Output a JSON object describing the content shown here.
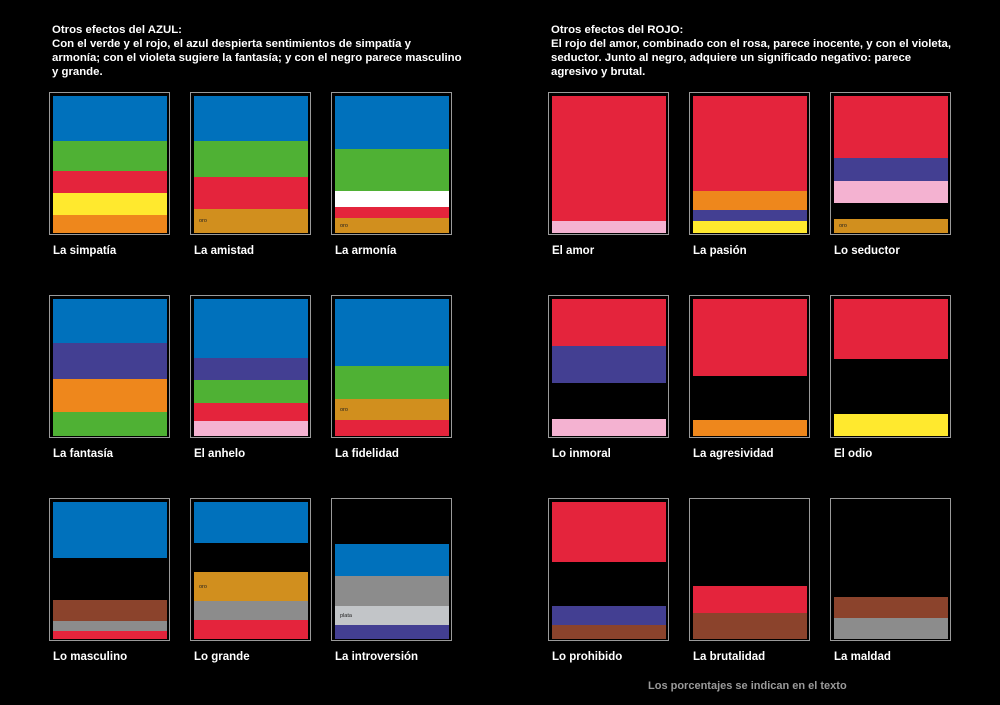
{
  "colors": {
    "azul": "#0071bc",
    "verde": "#4fb134",
    "rojo": "#e4243c",
    "amarillo": "#ffe92e",
    "naranja": "#ee871c",
    "oro": "#d18f1e",
    "blanco": "#ffffff",
    "violeta": "#433f92",
    "rosa": "#f4b2d1",
    "marron": "#8b432c",
    "gris": "#8c8c8c",
    "plata": "#c2c5c8",
    "negro": "#000000"
  },
  "azul": {
    "title": "Otros efectos del AZUL:",
    "body": "Con el verde y el rojo, el azul despierta sentimientos de simpatía y armonía; con el violeta sugiere la fantasía; y con el negro parece masculino y grande.",
    "cards": [
      {
        "label": "La simpatía",
        "stripes": [
          {
            "color": "azul",
            "share": 0.33
          },
          {
            "color": "verde",
            "share": 0.22
          },
          {
            "color": "rojo",
            "share": 0.16
          },
          {
            "color": "amarillo",
            "share": 0.16
          },
          {
            "color": "naranja",
            "share": 0.13
          }
        ]
      },
      {
        "label": "La amistad",
        "stripes": [
          {
            "color": "azul",
            "share": 0.33
          },
          {
            "color": "verde",
            "share": 0.26
          },
          {
            "color": "rojo",
            "share": 0.23
          },
          {
            "color": "oro",
            "share": 0.18,
            "tag": "oro"
          }
        ]
      },
      {
        "label": "La armonía",
        "stripes": [
          {
            "color": "azul",
            "share": 0.39
          },
          {
            "color": "verde",
            "share": 0.31
          },
          {
            "color": "blanco",
            "share": 0.12
          },
          {
            "color": "rojo",
            "share": 0.08
          },
          {
            "color": "oro",
            "share": 0.1,
            "tag": "oro"
          }
        ]
      },
      {
        "label": "La fantasía",
        "stripes": [
          {
            "color": "azul",
            "share": 0.32
          },
          {
            "color": "violeta",
            "share": 0.26
          },
          {
            "color": "naranja",
            "share": 0.24
          },
          {
            "color": "verde",
            "share": 0.18
          }
        ]
      },
      {
        "label": "El anhelo",
        "stripes": [
          {
            "color": "azul",
            "share": 0.43
          },
          {
            "color": "violeta",
            "share": 0.16
          },
          {
            "color": "verde",
            "share": 0.17
          },
          {
            "color": "rojo",
            "share": 0.13
          },
          {
            "color": "rosa",
            "share": 0.11
          }
        ]
      },
      {
        "label": "La fidelidad",
        "stripes": [
          {
            "color": "azul",
            "share": 0.49
          },
          {
            "color": "verde",
            "share": 0.24
          },
          {
            "color": "oro",
            "share": 0.15,
            "tag": "oro"
          },
          {
            "color": "rojo",
            "share": 0.12
          }
        ]
      },
      {
        "label": "Lo masculino",
        "stripes": [
          {
            "color": "azul",
            "share": 0.41
          },
          {
            "color": "negro",
            "share": 0.31
          },
          {
            "color": "marron",
            "share": 0.15
          },
          {
            "color": "gris",
            "share": 0.07
          },
          {
            "color": "rojo",
            "share": 0.06
          }
        ]
      },
      {
        "label": "Lo grande",
        "stripes": [
          {
            "color": "azul",
            "share": 0.3
          },
          {
            "color": "negro",
            "share": 0.21
          },
          {
            "color": "oro",
            "share": 0.21,
            "tag": "oro"
          },
          {
            "color": "gris",
            "share": 0.14
          },
          {
            "color": "rojo",
            "share": 0.14
          }
        ]
      },
      {
        "label": "La introversión",
        "stripes": [
          {
            "color": "negro",
            "share": 0.31
          },
          {
            "color": "azul",
            "share": 0.23
          },
          {
            "color": "gris",
            "share": 0.22
          },
          {
            "color": "plata",
            "share": 0.14,
            "tag": "plata"
          },
          {
            "color": "violeta",
            "share": 0.1
          }
        ]
      }
    ]
  },
  "rojo": {
    "title": "Otros efectos del ROJO:",
    "body": "El rojo del amor, combinado con el rosa, parece inocente, y con el violeta, seductor. Junto al negro, adquiere un significado negativo: parece agresivo y brutal.",
    "cards": [
      {
        "label": "El amor",
        "stripes": [
          {
            "color": "rojo",
            "share": 0.91
          },
          {
            "color": "rosa",
            "share": 0.09
          }
        ]
      },
      {
        "label": "La pasión",
        "stripes": [
          {
            "color": "rojo",
            "share": 0.69
          },
          {
            "color": "naranja",
            "share": 0.14
          },
          {
            "color": "violeta",
            "share": 0.08
          },
          {
            "color": "amarillo",
            "share": 0.09
          }
        ]
      },
      {
        "label": "Lo seductor",
        "stripes": [
          {
            "color": "rojo",
            "share": 0.45
          },
          {
            "color": "violeta",
            "share": 0.17
          },
          {
            "color": "rosa",
            "share": 0.16
          },
          {
            "color": "negro",
            "share": 0.12
          },
          {
            "color": "oro",
            "share": 0.1,
            "tag": "oro"
          }
        ]
      },
      {
        "label": "Lo inmoral",
        "stripes": [
          {
            "color": "rojo",
            "share": 0.34
          },
          {
            "color": "violeta",
            "share": 0.27
          },
          {
            "color": "negro",
            "share": 0.26
          },
          {
            "color": "rosa",
            "share": 0.13
          }
        ]
      },
      {
        "label": "La agresividad",
        "stripes": [
          {
            "color": "rojo",
            "share": 0.56
          },
          {
            "color": "negro",
            "share": 0.32
          },
          {
            "color": "naranja",
            "share": 0.12
          }
        ]
      },
      {
        "label": "El odio",
        "stripes": [
          {
            "color": "rojo",
            "share": 0.44
          },
          {
            "color": "negro",
            "share": 0.4
          },
          {
            "color": "amarillo",
            "share": 0.16
          }
        ]
      },
      {
        "label": "Lo prohibido",
        "stripes": [
          {
            "color": "rojo",
            "share": 0.44
          },
          {
            "color": "negro",
            "share": 0.32
          },
          {
            "color": "violeta",
            "share": 0.14
          },
          {
            "color": "marron",
            "share": 0.1
          }
        ]
      },
      {
        "label": "La brutalidad",
        "stripes": [
          {
            "color": "negro",
            "share": 0.61
          },
          {
            "color": "rojo",
            "share": 0.2
          },
          {
            "color": "marron",
            "share": 0.19
          }
        ]
      },
      {
        "label": "La maldad",
        "stripes": [
          {
            "color": "negro",
            "share": 0.69
          },
          {
            "color": "marron",
            "share": 0.15
          },
          {
            "color": "gris",
            "share": 0.16
          }
        ]
      }
    ]
  },
  "footnote": "Los porcentajes se indican en el texto"
}
